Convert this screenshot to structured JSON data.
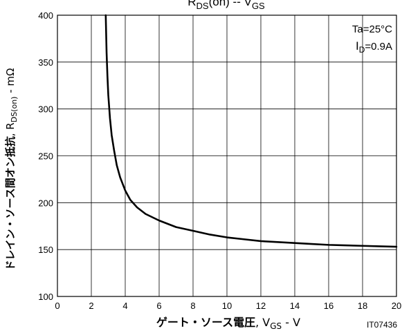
{
  "chart_data": {
    "type": "line",
    "title_parts": {
      "main": "R",
      "sub": "DS",
      "rest": "(on)  --  V",
      "sub2": "GS"
    },
    "xlabel": {
      "jp": "ゲート・ソース電圧",
      "sep": ", V",
      "sub": "GS",
      "unit": " - V"
    },
    "ylabel": {
      "jp": "ドレイン・ソース間オン抵抗",
      "sep": ", R",
      "sub": "DS(on)",
      "unit": " - mΩ"
    },
    "xlim": [
      0,
      20
    ],
    "ylim": [
      100,
      400
    ],
    "x_ticks": [
      "0",
      "2",
      "4",
      "6",
      "8",
      "10",
      "12",
      "14",
      "16",
      "18",
      "20"
    ],
    "y_ticks": [
      "100",
      "150",
      "200",
      "250",
      "300",
      "350",
      "400"
    ],
    "grid": true,
    "conditions": {
      "ta": "Ta=25°C",
      "id_main": "I",
      "id_sub": "D",
      "id_rest": "=0.9A"
    },
    "figure_code": "IT07436",
    "series": [
      {
        "x": [
          2.85,
          2.9,
          2.95,
          3.0,
          3.1,
          3.2,
          3.35,
          3.5,
          3.7,
          4.0,
          4.3,
          4.7,
          5.2,
          6.0,
          7.0,
          8.0,
          9.0,
          10.0,
          11.0,
          12.0,
          13.0,
          14.0,
          15.0,
          16.0,
          17.0,
          18.0,
          19.0,
          20.0
        ],
        "y": [
          400,
          360,
          335,
          315,
          290,
          272,
          255,
          240,
          227,
          213,
          203,
          195,
          188,
          181,
          174,
          170,
          166,
          163,
          161,
          159,
          158,
          157,
          156,
          155,
          154.5,
          154,
          153.5,
          153
        ]
      }
    ]
  }
}
